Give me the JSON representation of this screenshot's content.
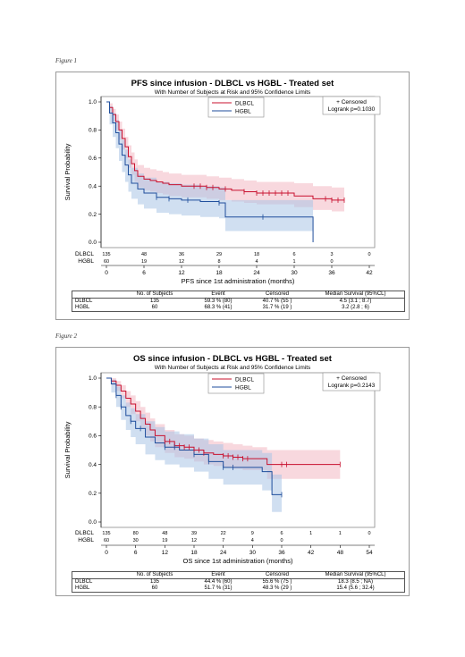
{
  "figures": [
    {
      "caption": "Figure 1",
      "title": "PFS since infusion -  DLBCL vs HGBL  - Treated set",
      "subtitle": "With Number of Subjects at Risk and 95% Confidence Limits",
      "logrank": "Logrank p=0.1030",
      "censored_label": "+ Censored",
      "stats_header": [
        "",
        "No. of Subjects",
        "Event",
        "Censored",
        "Median Survival (95%CL)"
      ],
      "stats_rows": [
        [
          "DLBCL",
          "135",
          "59.3 % (80)",
          "40.7 % (55 )",
          "4.5 (3.1 ; 8.7)"
        ],
        [
          "HGBL",
          "60",
          "68.3 % (41)",
          "31.7 % (19 )",
          "3.2 (2.8 ; 6)"
        ]
      ]
    },
    {
      "caption": "Figure 2",
      "title": "OS since infusion -  DLBCL vs HGBL  - Treated set",
      "subtitle": "With Number of Subjects at Risk and 95% Confidence Limits",
      "logrank": "Logrank p=0.2143",
      "censored_label": "+ Censored",
      "stats_header": [
        "",
        "No. of Subjects",
        "Event",
        "Censored",
        "Median Survival (95%CL)"
      ],
      "stats_rows": [
        [
          "DLBCL",
          "135",
          "44.4 % (60)",
          "55.6 % (75 )",
          "18.3 (8.5 ; NA)"
        ],
        [
          "HGBL",
          "60",
          "51.7 % (31)",
          "48.3 % (29 )",
          "15.4 (5.6 ; 32.4)"
        ]
      ]
    }
  ],
  "colors": {
    "dlbcl": "#c8102e",
    "hgbl": "#1f4e9c",
    "dlbcl_band": "#f2b8c3",
    "hgbl_band": "#a9c4e6"
  },
  "chart_data": [
    {
      "type": "line",
      "title": "PFS since infusion -  DLBCL vs HGBL  - Treated set",
      "subtitle": "With Number of Subjects at Risk and 95% Confidence Limits",
      "xlabel": "PFS since 1st administration (months)",
      "ylabel": "Survival Probability",
      "xlim": [
        0,
        42
      ],
      "ylim": [
        0,
        1
      ],
      "xticks": [
        0,
        6,
        12,
        18,
        24,
        30,
        36,
        42
      ],
      "yticks": [
        0.0,
        0.2,
        0.4,
        0.6,
        0.8,
        1.0
      ],
      "legend": [
        "DLBCL",
        "HGBL"
      ],
      "legend_position": "top-center",
      "at_risk_times": [
        0,
        6,
        12,
        18,
        24,
        30,
        36,
        42
      ],
      "series": [
        {
          "name": "DLBCL",
          "x": [
            0,
            0.5,
            1,
            1.5,
            2,
            2.5,
            3,
            3.5,
            4,
            4.5,
            5,
            6,
            7,
            8,
            9,
            10,
            12,
            14,
            16,
            18,
            20,
            22,
            24,
            27,
            30,
            33,
            36,
            38
          ],
          "y": [
            1.0,
            0.96,
            0.91,
            0.86,
            0.8,
            0.74,
            0.68,
            0.61,
            0.56,
            0.51,
            0.47,
            0.45,
            0.44,
            0.43,
            0.42,
            0.41,
            0.4,
            0.4,
            0.39,
            0.38,
            0.37,
            0.36,
            0.35,
            0.35,
            0.33,
            0.31,
            0.3,
            0.3
          ],
          "lower": [
            1.0,
            0.92,
            0.86,
            0.8,
            0.73,
            0.66,
            0.6,
            0.53,
            0.48,
            0.43,
            0.39,
            0.37,
            0.36,
            0.35,
            0.34,
            0.33,
            0.32,
            0.32,
            0.31,
            0.3,
            0.29,
            0.28,
            0.27,
            0.27,
            0.25,
            0.23,
            0.22,
            0.22
          ],
          "upper": [
            1.0,
            0.99,
            0.95,
            0.91,
            0.86,
            0.81,
            0.75,
            0.69,
            0.64,
            0.59,
            0.55,
            0.53,
            0.52,
            0.51,
            0.5,
            0.49,
            0.48,
            0.48,
            0.47,
            0.46,
            0.45,
            0.44,
            0.43,
            0.43,
            0.42,
            0.4,
            0.39,
            0.39
          ],
          "censored_x": [
            14,
            15,
            16,
            17,
            19,
            22,
            24,
            25,
            26,
            27,
            28,
            29,
            35,
            36,
            37,
            38
          ],
          "at_risk": [
            135,
            48,
            36,
            29,
            18,
            6,
            3,
            0
          ]
        },
        {
          "name": "HGBL",
          "x": [
            0,
            0.5,
            1,
            1.5,
            2,
            2.5,
            3,
            3.5,
            4,
            5,
            6,
            8,
            10,
            12,
            15,
            18,
            19,
            24,
            30,
            33,
            33.01
          ],
          "y": [
            1.0,
            0.92,
            0.85,
            0.78,
            0.7,
            0.62,
            0.55,
            0.48,
            0.42,
            0.38,
            0.35,
            0.32,
            0.31,
            0.3,
            0.29,
            0.28,
            0.18,
            0.18,
            0.18,
            0.18,
            0.0
          ],
          "lower": [
            1.0,
            0.84,
            0.75,
            0.67,
            0.58,
            0.5,
            0.43,
            0.36,
            0.31,
            0.27,
            0.24,
            0.21,
            0.2,
            0.19,
            0.18,
            0.17,
            0.08,
            0.08,
            0.08,
            0.08,
            0.0
          ],
          "upper": [
            1.0,
            0.97,
            0.92,
            0.87,
            0.8,
            0.73,
            0.66,
            0.59,
            0.53,
            0.49,
            0.46,
            0.43,
            0.42,
            0.41,
            0.4,
            0.39,
            0.3,
            0.3,
            0.3,
            0.3,
            0.0
          ],
          "censored_x": [
            8,
            10,
            13,
            18,
            25
          ],
          "at_risk": [
            60,
            19,
            12,
            8,
            4,
            1,
            0,
            null
          ]
        }
      ]
    },
    {
      "type": "line",
      "title": "OS since infusion -  DLBCL vs HGBL  - Treated set",
      "subtitle": "With Number of Subjects at Risk and 95% Confidence Limits",
      "xlabel": "OS since 1st administration (months)",
      "ylabel": "Survival Probability",
      "xlim": [
        0,
        54
      ],
      "ylim": [
        0,
        1
      ],
      "xticks": [
        0,
        6,
        12,
        18,
        24,
        30,
        36,
        42,
        48,
        54
      ],
      "yticks": [
        0.0,
        0.2,
        0.4,
        0.6,
        0.8,
        1.0
      ],
      "legend": [
        "DLBCL",
        "HGBL"
      ],
      "legend_position": "top-center",
      "at_risk_times": [
        0,
        6,
        12,
        18,
        24,
        30,
        36,
        42,
        48,
        54
      ],
      "series": [
        {
          "name": "DLBCL",
          "x": [
            0,
            1,
            2,
            3,
            4,
            5,
            6,
            7,
            8,
            9,
            10,
            12,
            14,
            16,
            18,
            20,
            22,
            24,
            26,
            28,
            30,
            33,
            36,
            42,
            48
          ],
          "y": [
            1.0,
            0.98,
            0.95,
            0.91,
            0.86,
            0.82,
            0.77,
            0.72,
            0.68,
            0.64,
            0.6,
            0.56,
            0.53,
            0.52,
            0.5,
            0.48,
            0.47,
            0.46,
            0.45,
            0.44,
            0.44,
            0.4,
            0.4,
            0.4,
            0.4
          ],
          "lower": [
            1.0,
            0.95,
            0.91,
            0.86,
            0.8,
            0.75,
            0.7,
            0.65,
            0.6,
            0.56,
            0.52,
            0.48,
            0.45,
            0.44,
            0.42,
            0.4,
            0.39,
            0.38,
            0.37,
            0.36,
            0.36,
            0.3,
            0.3,
            0.3,
            0.3
          ],
          "upper": [
            1.0,
            1.0,
            0.98,
            0.95,
            0.91,
            0.88,
            0.84,
            0.8,
            0.76,
            0.72,
            0.68,
            0.64,
            0.61,
            0.6,
            0.58,
            0.57,
            0.56,
            0.55,
            0.54,
            0.53,
            0.52,
            0.5,
            0.5,
            0.5,
            0.5
          ],
          "censored_x": [
            12,
            13,
            14,
            15,
            16,
            17,
            18,
            19,
            20,
            24,
            25,
            26,
            27,
            28,
            29,
            36,
            37,
            48
          ],
          "at_risk": [
            135,
            80,
            48,
            39,
            22,
            9,
            6,
            1,
            1,
            0
          ]
        },
        {
          "name": "HGBL",
          "x": [
            0,
            1,
            2,
            3,
            4,
            5,
            6,
            8,
            10,
            12,
            15,
            18,
            21,
            24,
            28,
            30,
            32,
            34,
            36
          ],
          "y": [
            1.0,
            0.96,
            0.88,
            0.8,
            0.74,
            0.7,
            0.65,
            0.59,
            0.55,
            0.52,
            0.5,
            0.47,
            0.42,
            0.38,
            0.38,
            0.38,
            0.35,
            0.19,
            0.19
          ],
          "lower": [
            1.0,
            0.9,
            0.8,
            0.71,
            0.64,
            0.59,
            0.54,
            0.47,
            0.43,
            0.4,
            0.38,
            0.35,
            0.3,
            0.26,
            0.26,
            0.26,
            0.22,
            0.07,
            0.07
          ],
          "upper": [
            1.0,
            0.99,
            0.94,
            0.88,
            0.83,
            0.79,
            0.75,
            0.7,
            0.66,
            0.63,
            0.61,
            0.58,
            0.54,
            0.5,
            0.5,
            0.5,
            0.48,
            0.33,
            0.33
          ],
          "censored_x": [
            2,
            3,
            5,
            7,
            12,
            14,
            18,
            21,
            24,
            26,
            36
          ],
          "at_risk": [
            60,
            30,
            19,
            12,
            7,
            4,
            0,
            null,
            null,
            null
          ]
        }
      ]
    }
  ]
}
